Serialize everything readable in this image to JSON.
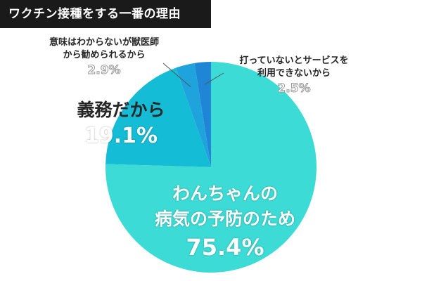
{
  "chart_data": {
    "type": "pie",
    "title": "ワクチン接種をする一番の理由",
    "start_angle_deg": 0,
    "direction": "clockwise",
    "slices": [
      {
        "label_lines": [
          "わんちゃんの",
          "病気の予防のため"
        ],
        "value": 75.4,
        "value_label": "75.4%",
        "color": "#3ddbd5"
      },
      {
        "label_lines": [
          "義務だから"
        ],
        "value": 19.1,
        "value_label": "19.1%",
        "color": "#15bcd6"
      },
      {
        "label_lines": [
          "意味はわからないが獣医師",
          "から勧められるから"
        ],
        "value": 2.9,
        "value_label": "2.9%",
        "color": "#1fa3dd"
      },
      {
        "label_lines": [
          "打っていないとサービスを",
          "利用できないから"
        ],
        "value": 2.5,
        "value_label": "2.5%",
        "color": "#1f86d6"
      }
    ]
  }
}
